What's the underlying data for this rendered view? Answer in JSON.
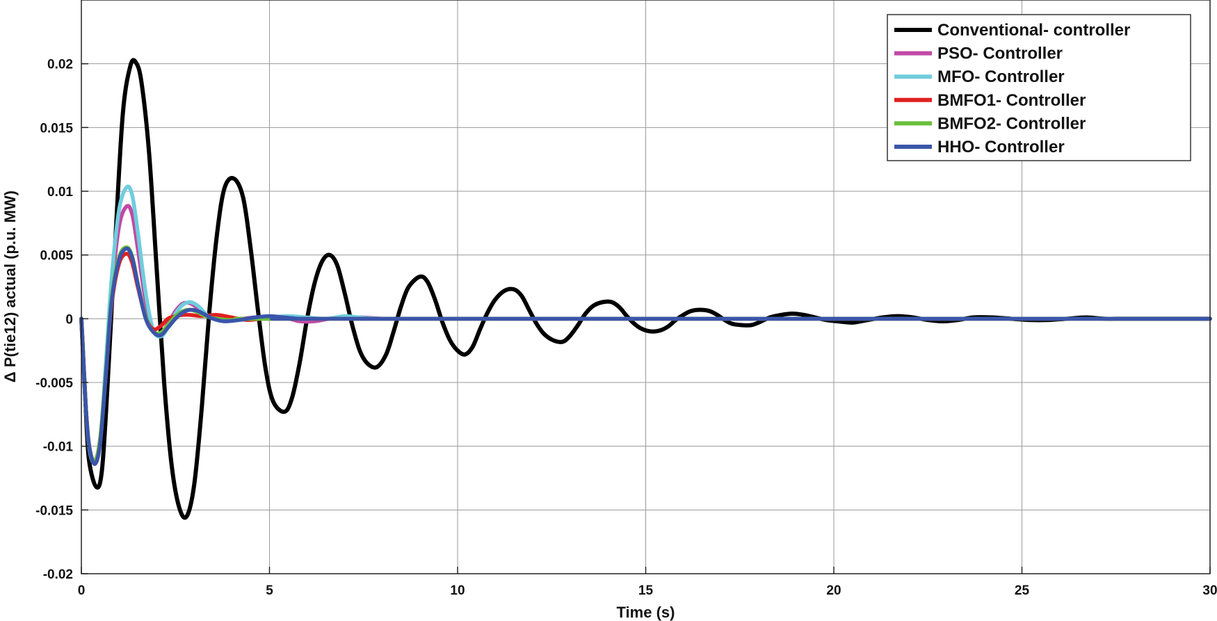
{
  "chart_data": {
    "type": "line",
    "xlabel": "Time (s)",
    "ylabel": "Δ P(tie12) actual (p.u. MW)",
    "xlim": [
      0,
      30
    ],
    "ylim": [
      -0.02,
      0.025
    ],
    "grid": true,
    "legend_position": "top-right",
    "x_ticks": [
      0,
      5,
      10,
      15,
      20,
      25,
      30
    ],
    "x_tick_labels": [
      "0",
      "5",
      "10",
      "15",
      "20",
      "25",
      "30"
    ],
    "y_ticks": [
      -0.02,
      -0.015,
      -0.01,
      -0.005,
      0,
      0.005,
      0.01,
      0.015,
      0.02
    ],
    "y_tick_labels": [
      "-0.02",
      "-0.015",
      "-0.01",
      "-0.005",
      "0",
      "0.005",
      "0.01",
      "0.015",
      "0.02"
    ],
    "series": [
      {
        "name": "Conventional- controller",
        "color": "#000000",
        "points": [
          [
            0,
            0
          ],
          [
            0.1,
            -0.006
          ],
          [
            0.2,
            -0.011
          ],
          [
            0.4,
            -0.0132
          ],
          [
            0.55,
            -0.0118
          ],
          [
            0.7,
            -0.005
          ],
          [
            0.9,
            0.006
          ],
          [
            1.1,
            0.016
          ],
          [
            1.3,
            0.0198
          ],
          [
            1.45,
            0.0201
          ],
          [
            1.6,
            0.0185
          ],
          [
            1.8,
            0.013
          ],
          [
            2.0,
            0.004
          ],
          [
            2.2,
            -0.005
          ],
          [
            2.4,
            -0.0115
          ],
          [
            2.6,
            -0.0148
          ],
          [
            2.8,
            -0.0155
          ],
          [
            3.0,
            -0.013
          ],
          [
            3.2,
            -0.007
          ],
          [
            3.4,
            0.0005
          ],
          [
            3.6,
            0.0065
          ],
          [
            3.8,
            0.0102
          ],
          [
            4.05,
            0.011
          ],
          [
            4.3,
            0.0095
          ],
          [
            4.5,
            0.0055
          ],
          [
            4.7,
            0.0005
          ],
          [
            4.9,
            -0.004
          ],
          [
            5.1,
            -0.0065
          ],
          [
            5.4,
            -0.0073
          ],
          [
            5.6,
            -0.0062
          ],
          [
            5.8,
            -0.0035
          ],
          [
            6.0,
            0
          ],
          [
            6.2,
            0.0028
          ],
          [
            6.4,
            0.0045
          ],
          [
            6.6,
            0.005
          ],
          [
            6.8,
            0.0042
          ],
          [
            7.0,
            0.002
          ],
          [
            7.2,
            -0.0005
          ],
          [
            7.4,
            -0.0025
          ],
          [
            7.6,
            -0.0035
          ],
          [
            7.85,
            -0.0038
          ],
          [
            8.1,
            -0.0028
          ],
          [
            8.3,
            -0.001
          ],
          [
            8.5,
            0.001
          ],
          [
            8.7,
            0.0025
          ],
          [
            9.0,
            0.0033
          ],
          [
            9.2,
            0.0029
          ],
          [
            9.4,
            0.0015
          ],
          [
            9.6,
            -0.0003
          ],
          [
            9.8,
            -0.0017
          ],
          [
            10.0,
            -0.0025
          ],
          [
            10.2,
            -0.0028
          ],
          [
            10.4,
            -0.0022
          ],
          [
            10.6,
            -0.0008
          ],
          [
            10.8,
            0.0005
          ],
          [
            11.0,
            0.0015
          ],
          [
            11.25,
            0.0022
          ],
          [
            11.5,
            0.0023
          ],
          [
            11.7,
            0.0018
          ],
          [
            11.9,
            0.0007
          ],
          [
            12.1,
            -0.0004
          ],
          [
            12.3,
            -0.0012
          ],
          [
            12.55,
            -0.0017
          ],
          [
            12.8,
            -0.0018
          ],
          [
            13.0,
            -0.0013
          ],
          [
            13.2,
            -0.0005
          ],
          [
            13.4,
            0.0004
          ],
          [
            13.6,
            0.001
          ],
          [
            13.85,
            0.0013
          ],
          [
            14.1,
            0.0013
          ],
          [
            14.3,
            0.0009
          ],
          [
            14.5,
            0.0002
          ],
          [
            14.7,
            -0.0004
          ],
          [
            14.9,
            -0.0008
          ],
          [
            15.15,
            -0.001
          ],
          [
            15.4,
            -0.0009
          ],
          [
            15.6,
            -0.0006
          ],
          [
            15.8,
            -0.0001
          ],
          [
            16.0,
            0.0003
          ],
          [
            16.2,
            0.0006
          ],
          [
            16.45,
            0.0007
          ],
          [
            16.7,
            0.0006
          ],
          [
            16.9,
            0.0003
          ],
          [
            17.1,
            -0.0001
          ],
          [
            17.3,
            -0.0004
          ],
          [
            17.55,
            -0.0005
          ],
          [
            17.8,
            -0.0005
          ],
          [
            18.0,
            -0.0003
          ],
          [
            18.3,
            0.0001
          ],
          [
            18.6,
            0.0003
          ],
          [
            18.9,
            0.0004
          ],
          [
            19.2,
            0.0003
          ],
          [
            19.5,
            0.0001
          ],
          [
            19.8,
            -0.0001
          ],
          [
            20.1,
            -0.0002
          ],
          [
            20.5,
            -0.0003
          ],
          [
            20.9,
            -0.0001
          ],
          [
            21.3,
            0.0001
          ],
          [
            21.7,
            0.0002
          ],
          [
            22.1,
            0.0001
          ],
          [
            22.5,
            -0.0001
          ],
          [
            22.9,
            -0.0002
          ],
          [
            23.3,
            -0.0001
          ],
          [
            23.7,
            0.0001
          ],
          [
            24.2,
            0.0001
          ],
          [
            24.7,
            0
          ],
          [
            25.2,
            -0.0001
          ],
          [
            25.7,
            -0.0001
          ],
          [
            26.2,
            0
          ],
          [
            26.7,
            0.0001
          ],
          [
            27.2,
            0
          ],
          [
            27.7,
            0
          ],
          [
            28.2,
            0
          ],
          [
            28.7,
            0
          ],
          [
            29.2,
            0
          ],
          [
            30,
            0
          ]
        ]
      },
      {
        "name": "PSO- Controller",
        "color": "#c04aa6",
        "points": [
          [
            0,
            0
          ],
          [
            0.1,
            -0.006
          ],
          [
            0.2,
            -0.0098
          ],
          [
            0.35,
            -0.0112
          ],
          [
            0.5,
            -0.0095
          ],
          [
            0.65,
            -0.004
          ],
          [
            0.8,
            0.002
          ],
          [
            1.0,
            0.0072
          ],
          [
            1.2,
            0.0088
          ],
          [
            1.35,
            0.0082
          ],
          [
            1.5,
            0.0055
          ],
          [
            1.7,
            0.0015
          ],
          [
            1.9,
            -0.0008
          ],
          [
            2.1,
            -0.0012
          ],
          [
            2.3,
            -0.0004
          ],
          [
            2.5,
            0.0006
          ],
          [
            2.7,
            0.0012
          ],
          [
            2.9,
            0.0012
          ],
          [
            3.1,
            0.0008
          ],
          [
            3.3,
            0.0003
          ],
          [
            3.5,
            0
          ],
          [
            3.7,
            -0.0001
          ],
          [
            4.0,
            -0.0001
          ],
          [
            4.3,
            0
          ],
          [
            4.6,
            0.0001
          ],
          [
            5.0,
            0.0001
          ],
          [
            5.5,
            0
          ],
          [
            5.8,
            -0.0002
          ],
          [
            6.2,
            -0.0002
          ],
          [
            6.6,
            0
          ],
          [
            7.0,
            0.0001
          ],
          [
            7.5,
            0.0001
          ],
          [
            8.0,
            0
          ],
          [
            8.5,
            0
          ],
          [
            9,
            0
          ],
          [
            30,
            0
          ]
        ]
      },
      {
        "name": "MFO- Controller",
        "color": "#6fcddd",
        "points": [
          [
            0,
            0
          ],
          [
            0.1,
            -0.006
          ],
          [
            0.2,
            -0.01
          ],
          [
            0.35,
            -0.0113
          ],
          [
            0.5,
            -0.0095
          ],
          [
            0.65,
            -0.0035
          ],
          [
            0.8,
            0.003
          ],
          [
            1.0,
            0.0085
          ],
          [
            1.2,
            0.0103
          ],
          [
            1.35,
            0.0097
          ],
          [
            1.5,
            0.0068
          ],
          [
            1.7,
            0.0022
          ],
          [
            1.9,
            -0.0008
          ],
          [
            2.1,
            -0.0014
          ],
          [
            2.3,
            -0.0007
          ],
          [
            2.5,
            0.0004
          ],
          [
            2.7,
            0.0011
          ],
          [
            2.9,
            0.0013
          ],
          [
            3.1,
            0.001
          ],
          [
            3.3,
            0.0004
          ],
          [
            3.5,
            0
          ],
          [
            3.8,
            -0.0002
          ],
          [
            4.2,
            -0.0001
          ],
          [
            4.6,
            0
          ],
          [
            5.0,
            0.0001
          ],
          [
            5.5,
            0.0002
          ],
          [
            6.0,
            0.0001
          ],
          [
            6.5,
            0
          ],
          [
            7.0,
            0.0002
          ],
          [
            7.4,
            0.0001
          ],
          [
            8.0,
            0
          ],
          [
            9,
            0
          ],
          [
            30,
            0
          ]
        ]
      },
      {
        "name": "BMFO1- Controller",
        "color": "#e02020",
        "points": [
          [
            0,
            0
          ],
          [
            0.1,
            -0.006
          ],
          [
            0.2,
            -0.0098
          ],
          [
            0.35,
            -0.0112
          ],
          [
            0.5,
            -0.0094
          ],
          [
            0.65,
            -0.0045
          ],
          [
            0.8,
            0.001
          ],
          [
            1.0,
            0.0043
          ],
          [
            1.2,
            0.0051
          ],
          [
            1.35,
            0.0044
          ],
          [
            1.5,
            0.0025
          ],
          [
            1.7,
            0.0002
          ],
          [
            1.9,
            -0.0008
          ],
          [
            2.1,
            -0.0006
          ],
          [
            2.3,
            0
          ],
          [
            2.5,
            0.0002
          ],
          [
            2.7,
            0.0003
          ],
          [
            2.9,
            0.0003
          ],
          [
            3.2,
            0.0002
          ],
          [
            3.6,
            0.0003
          ],
          [
            4.0,
            0.0001
          ],
          [
            4.4,
            -0.0001
          ],
          [
            4.8,
            0
          ],
          [
            5.2,
            0
          ],
          [
            5.6,
            0
          ],
          [
            6,
            0
          ],
          [
            30,
            0
          ]
        ]
      },
      {
        "name": "BMFO2- Controller",
        "color": "#6abf3a",
        "points": [
          [
            0,
            0
          ],
          [
            0.1,
            -0.006
          ],
          [
            0.2,
            -0.0098
          ],
          [
            0.35,
            -0.0112
          ],
          [
            0.5,
            -0.0094
          ],
          [
            0.65,
            -0.0042
          ],
          [
            0.8,
            0.0015
          ],
          [
            1.0,
            0.0048
          ],
          [
            1.2,
            0.0056
          ],
          [
            1.35,
            0.0049
          ],
          [
            1.5,
            0.0028
          ],
          [
            1.7,
            0.0002
          ],
          [
            1.9,
            -0.001
          ],
          [
            2.1,
            -0.0011
          ],
          [
            2.3,
            -0.0005
          ],
          [
            2.5,
            0.0002
          ],
          [
            2.7,
            0.0006
          ],
          [
            2.9,
            0.0007
          ],
          [
            3.1,
            0.0005
          ],
          [
            3.3,
            0.0002
          ],
          [
            3.6,
            0
          ],
          [
            4.0,
            -0.0001
          ],
          [
            4.5,
            0
          ],
          [
            5.0,
            0.0001
          ],
          [
            5.5,
            0
          ],
          [
            6,
            0
          ],
          [
            30,
            0
          ]
        ]
      },
      {
        "name": "HHO- Controller",
        "color": "#3a55aa",
        "points": [
          [
            0,
            0
          ],
          [
            0.1,
            -0.006
          ],
          [
            0.2,
            -0.0098
          ],
          [
            0.35,
            -0.0114
          ],
          [
            0.5,
            -0.0098
          ],
          [
            0.65,
            -0.0045
          ],
          [
            0.8,
            0.0012
          ],
          [
            1.0,
            0.0046
          ],
          [
            1.2,
            0.0055
          ],
          [
            1.35,
            0.0048
          ],
          [
            1.5,
            0.0027
          ],
          [
            1.7,
            0.0001
          ],
          [
            1.9,
            -0.001
          ],
          [
            2.1,
            -0.0013
          ],
          [
            2.3,
            -0.0007
          ],
          [
            2.5,
            0
          ],
          [
            2.7,
            0.0005
          ],
          [
            2.9,
            0.0007
          ],
          [
            3.1,
            0.0006
          ],
          [
            3.3,
            0.0003
          ],
          [
            3.5,
            0
          ],
          [
            3.8,
            -0.0002
          ],
          [
            4.2,
            -0.0001
          ],
          [
            4.6,
            0.0001
          ],
          [
            5.0,
            0.0002
          ],
          [
            5.4,
            0.0001
          ],
          [
            5.8,
            0
          ],
          [
            6.2,
            0
          ],
          [
            7,
            0
          ],
          [
            30,
            0
          ]
        ]
      }
    ]
  }
}
